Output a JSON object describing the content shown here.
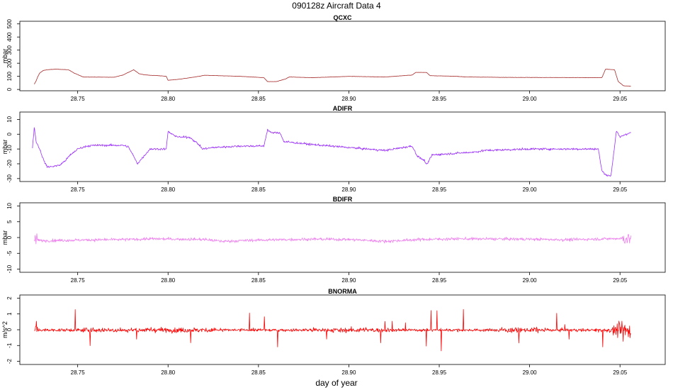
{
  "figure": {
    "title": "090128z   Aircraft Data 4",
    "xlabel": "day of year"
  },
  "chart_data": [
    {
      "type": "line",
      "title": "QCXC",
      "ylabel": "mbar",
      "color": "#a52a2a",
      "xlim": [
        28.718,
        29.075
      ],
      "ylim": [
        -10,
        520
      ],
      "xticks": [
        28.75,
        28.8,
        28.85,
        28.9,
        28.95,
        29.0,
        29.05
      ],
      "yticks": [
        0,
        100,
        200,
        300,
        400,
        500
      ],
      "noise": 1,
      "x": [
        28.726,
        28.727,
        28.728,
        28.729,
        28.731,
        28.733,
        28.738,
        28.745,
        28.748,
        28.753,
        28.77,
        28.775,
        28.778,
        28.781,
        28.784,
        28.787,
        28.79,
        28.795,
        28.799,
        28.8,
        28.806,
        28.81,
        28.818,
        28.82,
        28.84,
        28.853,
        28.855,
        28.86,
        28.865,
        28.867,
        28.88,
        28.9,
        28.92,
        28.935,
        28.937,
        28.943,
        28.945,
        28.96,
        28.965,
        28.99,
        29.04,
        29.042,
        29.047,
        29.049,
        29.052,
        29.056
      ],
      "values": [
        40,
        65,
        100,
        125,
        145,
        150,
        155,
        150,
        125,
        95,
        93,
        110,
        130,
        150,
        120,
        112,
        108,
        105,
        100,
        70,
        78,
        85,
        102,
        108,
        100,
        90,
        60,
        60,
        80,
        95,
        90,
        100,
        95,
        110,
        130,
        130,
        105,
        100,
        95,
        92,
        90,
        155,
        150,
        60,
        28,
        25
      ]
    },
    {
      "type": "line",
      "title": "ADIFR",
      "ylabel": "mbar",
      "color": "#9b30ff",
      "xlim": [
        28.718,
        29.075
      ],
      "ylim": [
        -32,
        15
      ],
      "xticks": [
        28.75,
        28.8,
        28.85,
        28.9,
        28.95,
        29.0,
        29.05
      ],
      "yticks": [
        -30,
        -20,
        -10,
        0,
        10
      ],
      "noise": 0.7,
      "x": [
        28.725,
        28.726,
        28.727,
        28.729,
        28.731,
        28.733,
        28.735,
        28.74,
        28.743,
        28.746,
        28.75,
        28.755,
        28.76,
        28.77,
        28.775,
        28.778,
        28.781,
        28.783,
        28.79,
        28.799,
        28.8,
        28.802,
        28.806,
        28.812,
        28.817,
        28.819,
        28.825,
        28.84,
        28.853,
        28.855,
        28.857,
        28.862,
        28.864,
        28.88,
        28.89,
        28.9,
        28.91,
        28.92,
        28.93,
        28.935,
        28.938,
        28.942,
        28.943,
        28.946,
        28.97,
        28.975,
        29.0,
        29.038,
        29.04,
        29.043,
        29.045,
        29.048,
        29.05,
        29.053,
        29.056
      ],
      "values": [
        -9,
        5,
        -5,
        -10,
        -17,
        -22,
        -22,
        -21,
        -18,
        -14,
        -10,
        -8,
        -7.5,
        -7.5,
        -7.5,
        -8.5,
        -15,
        -20,
        -10,
        -10,
        2,
        0,
        -2,
        -2,
        -7,
        -10,
        -9,
        -8,
        -8,
        3,
        1,
        1,
        -5,
        -7,
        -8,
        -9,
        -10,
        -11,
        -9,
        -8,
        -15,
        -18,
        -21,
        -14,
        -12,
        -11,
        -10,
        -10,
        -25,
        -28,
        -28,
        2,
        -2,
        0,
        1
      ]
    },
    {
      "type": "line",
      "title": "BDIFR",
      "ylabel": "mbar",
      "color": "#ee82ee",
      "xlim": [
        28.718,
        29.075
      ],
      "ylim": [
        -11,
        11
      ],
      "xticks": [
        28.75,
        28.8,
        28.85,
        28.9,
        28.95,
        29.0,
        29.05
      ],
      "yticks": [
        -10,
        -5,
        0,
        5,
        10
      ],
      "noise": 0.45,
      "x": [
        28.726,
        28.73,
        28.75,
        28.78,
        28.79,
        28.82,
        28.83,
        28.85,
        28.88,
        28.9,
        28.92,
        28.94,
        28.96,
        29.0,
        29.02,
        29.05,
        29.056
      ],
      "values": [
        -0.5,
        -1,
        -0.8,
        -0.6,
        -0.4,
        -0.6,
        -1.2,
        -0.8,
        -0.5,
        -0.6,
        -1.2,
        -0.6,
        -0.4,
        -0.5,
        -0.7,
        -0.3,
        -0.3
      ]
    },
    {
      "type": "line",
      "title": "BNORMA",
      "ylabel": "m/s^2",
      "color": "#ff0000",
      "xlim": [
        28.718,
        29.075
      ],
      "ylim": [
        -2.2,
        2.2
      ],
      "xticks": [
        28.75,
        28.8,
        28.85,
        28.9,
        28.95,
        29.0,
        29.05
      ],
      "yticks": [
        -2,
        -1,
        0,
        1,
        2
      ],
      "noise": 0.09,
      "x": [
        28.726,
        29.056
      ],
      "values": [
        -0.02,
        -0.02
      ]
    }
  ]
}
